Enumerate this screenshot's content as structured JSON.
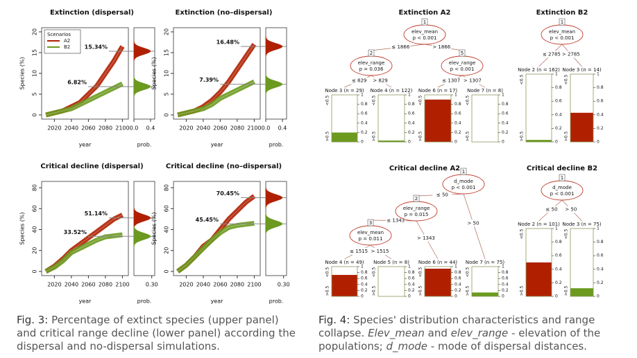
{
  "fig3": {
    "xlim": [
      2005,
      2107
    ],
    "xticks": [
      2020,
      2040,
      2060,
      2080,
      2100
    ],
    "xlabel": "year",
    "ylabel": "Species (%)",
    "density_label": "prob.",
    "legend": {
      "title": "Scenarios"
    },
    "panels": [
      {
        "title": "Extinction (dispersal)",
        "ylim": [
          -1,
          21
        ],
        "yticks": [
          0,
          5,
          10,
          15,
          20
        ],
        "density_xlim": [
          0,
          0.5
        ],
        "density_xticks": [
          {
            "value": 0,
            "label": "0.0"
          },
          {
            "value": 0.4,
            "label": "0.4"
          }
        ],
        "x": [
          2010,
          2020,
          2030,
          2040,
          2050,
          2060,
          2070,
          2080,
          2090,
          2100
        ],
        "series": [
          {
            "name": "A2",
            "color": "#b02000",
            "values": [
              0,
              0.5,
              1,
              2,
              3,
              5,
              7,
              10,
              13,
              16.5
            ]
          },
          {
            "name": "B2",
            "color": "#6b9a1f",
            "values": [
              0,
              0.5,
              1,
              1.5,
              2.5,
              3.5,
              4.5,
              5.5,
              6.5,
              7.5
            ]
          }
        ],
        "annotations": [
          {
            "value": 15.34,
            "label": "15.34%"
          },
          {
            "value": 6.82,
            "label": "6.82%"
          }
        ]
      },
      {
        "title": "Extinction (no–dispersal)",
        "ylim": [
          -1,
          21
        ],
        "yticks": [
          0,
          5,
          10,
          15,
          20
        ],
        "density_xlim": [
          0,
          0.5
        ],
        "density_xticks": [
          {
            "value": 0,
            "label": "0.0"
          },
          {
            "value": 0.4,
            "label": "0.4"
          }
        ],
        "x": [
          2010,
          2020,
          2030,
          2040,
          2050,
          2060,
          2070,
          2080,
          2090,
          2100
        ],
        "series": [
          {
            "name": "A2",
            "color": "#b02000",
            "values": [
              0,
              0.5,
              1,
              2,
              3.5,
              5.5,
              8,
              11,
              14,
              17
            ]
          },
          {
            "name": "B2",
            "color": "#6b9a1f",
            "values": [
              0,
              0.5,
              1,
              1.5,
              2.5,
              4,
              5,
              6,
              7,
              8
            ]
          }
        ],
        "annotations": [
          {
            "value": 16.48,
            "label": "16.48%"
          },
          {
            "value": 7.39,
            "label": "7.39%"
          }
        ]
      },
      {
        "title": "Critical decline (dispersal)",
        "ylim": [
          -4,
          86
        ],
        "yticks": [
          0,
          20,
          40,
          60,
          80
        ],
        "density_xlim": [
          0,
          0.35
        ],
        "density_xticks": [
          {
            "value": 0.3,
            "label": "0.30"
          }
        ],
        "x": [
          2010,
          2020,
          2030,
          2040,
          2050,
          2060,
          2070,
          2080,
          2090,
          2100
        ],
        "series": [
          {
            "name": "A2",
            "color": "#b02000",
            "values": [
              0,
              5,
              12,
              20,
              26,
              32,
              38,
              44,
              50,
              54
            ]
          },
          {
            "name": "B2",
            "color": "#6b9a1f",
            "values": [
              0,
              4,
              10,
              18,
              22,
              26,
              30,
              33,
              34,
              35
            ]
          }
        ],
        "annotations": [
          {
            "value": 51.14,
            "label": "51.14%"
          },
          {
            "value": 33.52,
            "label": "33.52%"
          }
        ]
      },
      {
        "title": "Critical decline (no–dispersal)",
        "ylim": [
          -4,
          86
        ],
        "yticks": [
          0,
          20,
          40,
          60,
          80
        ],
        "density_xlim": [
          0,
          0.35
        ],
        "density_xticks": [
          {
            "value": 0.3,
            "label": "0.30"
          }
        ],
        "x": [
          2010,
          2020,
          2030,
          2040,
          2050,
          2060,
          2070,
          2080,
          2090,
          2100
        ],
        "series": [
          {
            "name": "A2",
            "color": "#b02000",
            "values": [
              0,
              6,
              14,
              24,
              30,
              40,
              50,
              58,
              66,
              72
            ]
          },
          {
            "name": "B2",
            "color": "#6b9a1f",
            "values": [
              0,
              6,
              14,
              22,
              30,
              37,
              42,
              44,
              45,
              46
            ]
          }
        ],
        "annotations": [
          {
            "value": 70.45,
            "label": "70.45%"
          },
          {
            "value": 45.45,
            "label": "45.45%"
          }
        ]
      }
    ],
    "caption": {
      "label": "Fig. 3:",
      "text": "Percentage of extinct species (upper panel) and critical range decline (lower panel) according the dispersal and no-dispersal simulations."
    }
  },
  "fig4": {
    "leaf_axis": {
      "top": "<0.5",
      "bottom": ">0.5",
      "ticks": [
        0,
        0.2,
        0.4,
        0.6,
        0.8,
        1
      ]
    },
    "trees": [
      {
        "title": "Extinction A2",
        "nodes": [
          {
            "id": "1",
            "var": "elev_mean",
            "p": "p < 0.001"
          },
          {
            "id": "2",
            "var": "elev_range",
            "p": "p = 0.036"
          },
          {
            "id": "5",
            "var": "elev_range",
            "p": "p < 0.001"
          }
        ],
        "edges": [
          "≤ 1866",
          "> 1866",
          "≤ 829",
          "> 829",
          "≤ 1307",
          "> 1307"
        ],
        "leaves": [
          {
            "label": "Node 3 (n = 29)",
            "value": 0.2,
            "color": "#6b9a1f"
          },
          {
            "label": "Node 4 (n = 122)",
            "value": 0.03,
            "color": "#6b9a1f"
          },
          {
            "label": "Node 6 (n = 17)",
            "value": 0.9,
            "color": "#b02000"
          },
          {
            "label": "Node 7 (n = 8)",
            "value": 0,
            "color": "#6b9a1f"
          }
        ]
      },
      {
        "title": "Extinction B2",
        "nodes": [
          {
            "id": "1",
            "var": "elev_mean",
            "p": "p < 0.001"
          }
        ],
        "edges": [
          "≤ 2785",
          "> 2785"
        ],
        "leaves": [
          {
            "label": "Node 2 (n = 162)",
            "value": 0.03,
            "color": "#6b9a1f"
          },
          {
            "label": "Node 3 (n = 14)",
            "value": 0.43,
            "color": "#b02000"
          }
        ]
      },
      {
        "title": "Critical decline A2",
        "nodes": [
          {
            "id": "1",
            "var": "d_mode",
            "p": "p < 0.001"
          },
          {
            "id": "2",
            "var": "elev_range",
            "p": "p = 0.015"
          },
          {
            "id": "3",
            "var": "elev_mean",
            "p": "p = 0.011"
          }
        ],
        "edges": [
          "≤ 50",
          "> 50",
          "≤ 1343",
          "> 1343",
          "≤ 1515",
          "> 1515"
        ],
        "leaves": [
          {
            "label": "Node 4 (n = 49)",
            "value": 0.72,
            "color": "#b02000"
          },
          {
            "label": "Node 5 (n = 8)",
            "value": 0,
            "color": "#6b9a1f"
          },
          {
            "label": "Node 6 (n = 44)",
            "value": 0.93,
            "color": "#b02000"
          },
          {
            "label": "Node 7 (n = 75)",
            "value": 0.13,
            "color": "#6b9a1f"
          }
        ]
      },
      {
        "title": "Critical decline B2",
        "nodes": [
          {
            "id": "1",
            "var": "d_mode",
            "p": "p < 0.001"
          }
        ],
        "edges": [
          "≤ 50",
          "> 50"
        ],
        "leaves": [
          {
            "label": "Node 2 (n = 101)",
            "value": 0.5,
            "color": "#b02000"
          },
          {
            "label": "Node 3 (n = 75)",
            "value": 0.12,
            "color": "#6b9a1f"
          }
        ]
      }
    ],
    "caption": [
      {
        "text": "Fig. 4:",
        "italic": false
      },
      {
        "text": " Species' distribution characteristics and range collapse. ",
        "italic": false
      },
      {
        "text": "Elev_mean",
        "italic": true
      },
      {
        "text": " and ",
        "italic": false
      },
      {
        "text": "elev_range",
        "italic": true
      },
      {
        "text": " - elevation of the populations; ",
        "italic": false
      },
      {
        "text": "d_mode",
        "italic": true
      },
      {
        "text": " - mode of dispersal distances.",
        "italic": false
      }
    ]
  }
}
